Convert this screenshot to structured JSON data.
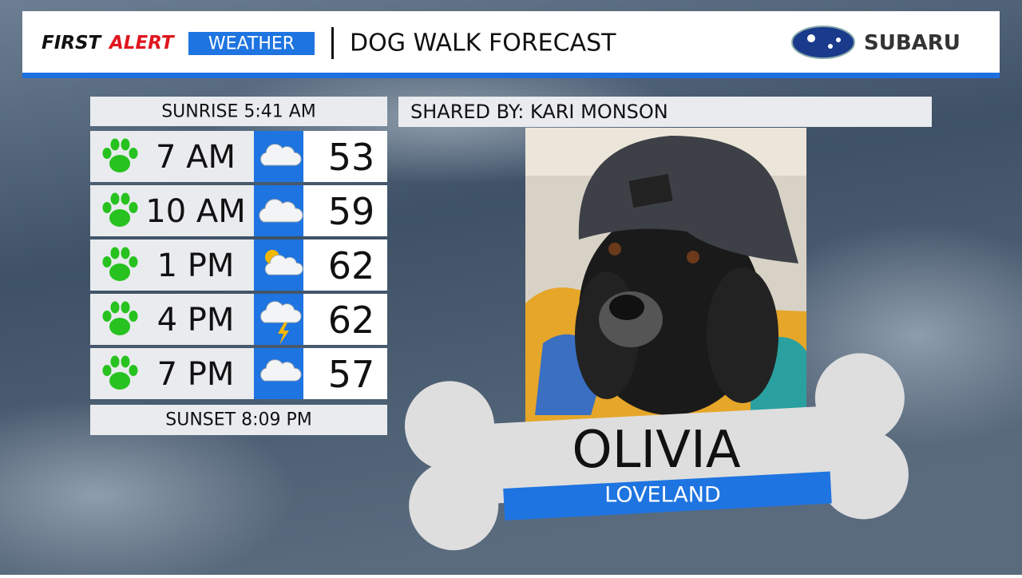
{
  "header": {
    "brand_first": "FIRST",
    "brand_alert": "ALERT",
    "brand_weather": "WEATHER",
    "title": "DOG WALK FORECAST",
    "sponsor": "SUBARU"
  },
  "forecast": {
    "sunrise": "SUNRISE 5:41 AM",
    "rows": [
      {
        "time": "7 AM",
        "temp": 53
      },
      {
        "time": "10 AM",
        "temp": 59
      },
      {
        "time": "1 PM",
        "temp": 62
      },
      {
        "time": "4 PM",
        "temp": 62
      },
      {
        "time": "7 PM",
        "temp": 57
      }
    ],
    "sunset": "SUNSET 8:09 PM"
  },
  "feature": {
    "shared_by": "SHARED BY: KARI MONSON",
    "dog_name": "OLIVIA",
    "location": "LOVELAND"
  }
}
